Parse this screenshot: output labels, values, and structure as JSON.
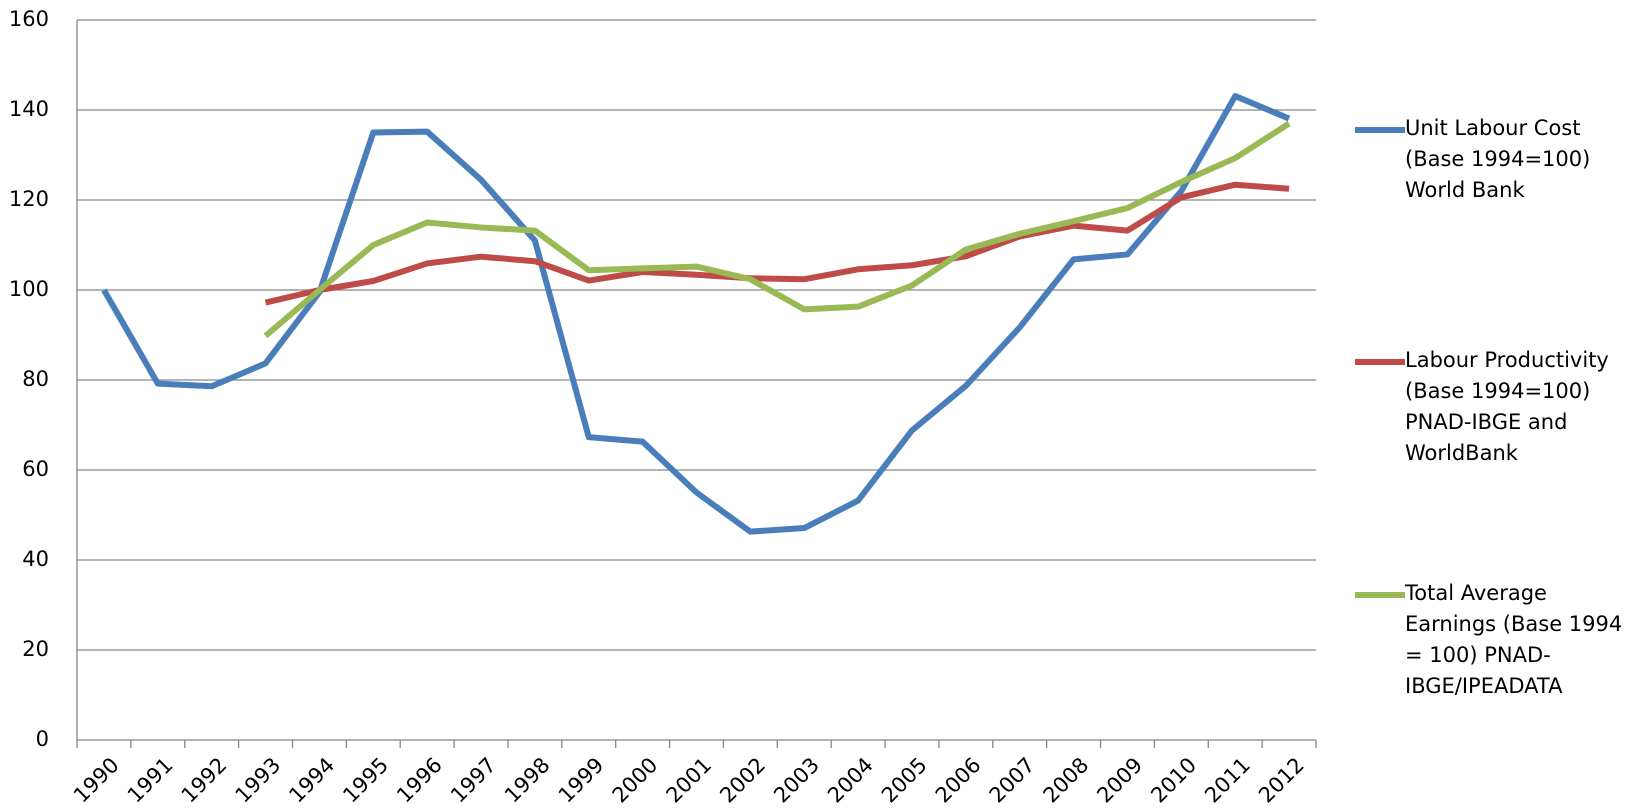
{
  "chart_data": {
    "type": "line",
    "categories": [
      "1990",
      "1991",
      "1992",
      "1993",
      "1994",
      "1995",
      "1996",
      "1997",
      "1998",
      "1999",
      "2000",
      "2001",
      "2002",
      "2003",
      "2004",
      "2005",
      "2006",
      "2007",
      "2008",
      "2009",
      "2010",
      "2011",
      "2012"
    ],
    "series": [
      {
        "name": "Unit Labour Cost (Base 1994=100) World Bank",
        "color": "#4a7ebb",
        "values": [
          100,
          79.2,
          78.6,
          83.7,
          99.5,
          135,
          135.2,
          124.5,
          111,
          67.3,
          66.3,
          55,
          46.3,
          47.1,
          53.2,
          68.8,
          78.7,
          91.7,
          106.8,
          107.9,
          122,
          143.1,
          138.1
        ]
      },
      {
        "name": "Labour Productivity (Base 1994=100) PNAD-IBGE and WorldBank",
        "color": "#be4b48",
        "values": [
          null,
          null,
          null,
          97.2,
          100,
          102,
          105.9,
          107.4,
          106.4,
          102.1,
          104,
          103.4,
          102.6,
          102.4,
          104.6,
          105.5,
          107.5,
          111.9,
          114.3,
          113.2,
          120.6,
          123.4,
          122.5
        ]
      },
      {
        "name": "Total Average Earnings (Base 1994 = 100) PNAD-IBGE/IPEADATA",
        "color": "#98b954",
        "values": [
          null,
          null,
          null,
          89.8,
          100,
          110,
          115,
          113.9,
          113.2,
          104.4,
          104.8,
          105.2,
          102.4,
          95.7,
          96.3,
          101,
          109,
          112.5,
          115.3,
          118.2,
          124,
          129.3,
          137
        ]
      }
    ],
    "ylim": [
      0,
      160
    ],
    "yticks": [
      0,
      20,
      40,
      60,
      80,
      100,
      120,
      140,
      160
    ],
    "grid": true,
    "legend": "right"
  }
}
